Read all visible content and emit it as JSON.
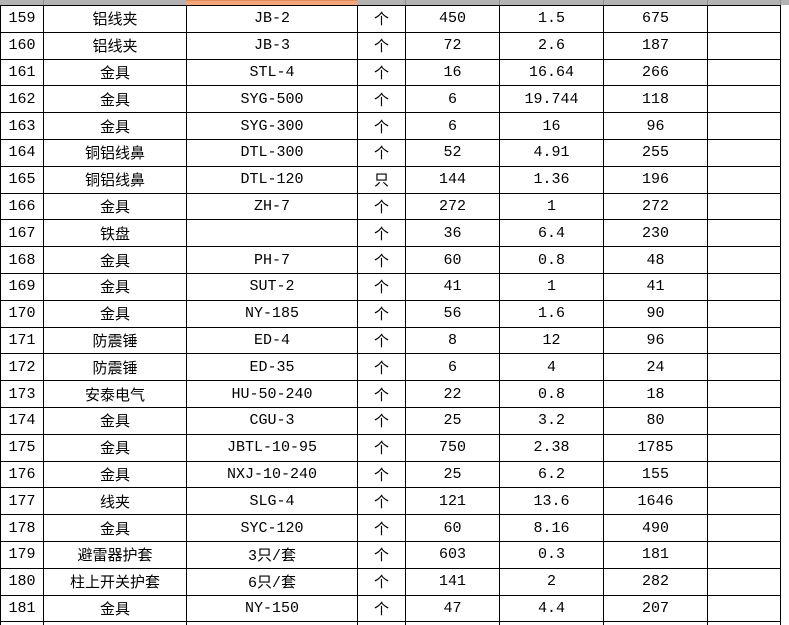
{
  "colors": {
    "background": "#ffffff",
    "grid_line": "#000000",
    "strip_gray": "#b3b3b3",
    "strip_orange": "#f3a678"
  },
  "table": {
    "columns": [
      {
        "key": "no",
        "name": "row-number-cell"
      },
      {
        "key": "name",
        "name": "item-name-cell"
      },
      {
        "key": "model",
        "name": "model-cell"
      },
      {
        "key": "unit",
        "name": "unit-cell"
      },
      {
        "key": "qty",
        "name": "quantity-cell"
      },
      {
        "key": "price",
        "name": "unit-price-cell"
      },
      {
        "key": "total",
        "name": "total-cell"
      },
      {
        "key": "blank",
        "name": "empty-cell"
      }
    ],
    "rows": [
      {
        "no": "159",
        "name": "铝线夹",
        "model": "JB-2",
        "unit": "个",
        "qty": "450",
        "price": "1.5",
        "total": "675",
        "blank": ""
      },
      {
        "no": "160",
        "name": "铝线夹",
        "model": "JB-3",
        "unit": "个",
        "qty": "72",
        "price": "2.6",
        "total": "187",
        "blank": ""
      },
      {
        "no": "161",
        "name": "金具",
        "model": "STL-4",
        "unit": "个",
        "qty": "16",
        "price": "16.64",
        "total": "266",
        "blank": ""
      },
      {
        "no": "162",
        "name": "金具",
        "model": "SYG-500",
        "unit": "个",
        "qty": "6",
        "price": "19.744",
        "total": "118",
        "blank": ""
      },
      {
        "no": "163",
        "name": "金具",
        "model": "SYG-300",
        "unit": "个",
        "qty": "6",
        "price": "16",
        "total": "96",
        "blank": ""
      },
      {
        "no": "164",
        "name": "铜铝线鼻",
        "model": "DTL-300",
        "unit": "个",
        "qty": "52",
        "price": "4.91",
        "total": "255",
        "blank": ""
      },
      {
        "no": "165",
        "name": "铜铝线鼻",
        "model": "DTL-120",
        "unit": "只",
        "qty": "144",
        "price": "1.36",
        "total": "196",
        "blank": ""
      },
      {
        "no": "166",
        "name": "金具",
        "model": "ZH-7",
        "unit": "个",
        "qty": "272",
        "price": "1",
        "total": "272",
        "blank": ""
      },
      {
        "no": "167",
        "name": "铁盘",
        "model": "",
        "unit": "个",
        "qty": "36",
        "price": "6.4",
        "total": "230",
        "blank": ""
      },
      {
        "no": "168",
        "name": "金具",
        "model": "PH-7",
        "unit": "个",
        "qty": "60",
        "price": "0.8",
        "total": "48",
        "blank": ""
      },
      {
        "no": "169",
        "name": "金具",
        "model": "SUT-2",
        "unit": "个",
        "qty": "41",
        "price": "1",
        "total": "41",
        "blank": ""
      },
      {
        "no": "170",
        "name": "金具",
        "model": "NY-185",
        "unit": "个",
        "qty": "56",
        "price": "1.6",
        "total": "90",
        "blank": ""
      },
      {
        "no": "171",
        "name": "防震锤",
        "model": "ED-4",
        "unit": "个",
        "qty": "8",
        "price": "12",
        "total": "96",
        "blank": ""
      },
      {
        "no": "172",
        "name": "防震锤",
        "model": "ED-35",
        "unit": "个",
        "qty": "6",
        "price": "4",
        "total": "24",
        "blank": ""
      },
      {
        "no": "173",
        "name": "安泰电气",
        "model": "HU-50-240",
        "unit": "个",
        "qty": "22",
        "price": "0.8",
        "total": "18",
        "blank": ""
      },
      {
        "no": "174",
        "name": "金具",
        "model": "CGU-3",
        "unit": "个",
        "qty": "25",
        "price": "3.2",
        "total": "80",
        "blank": ""
      },
      {
        "no": "175",
        "name": "金具",
        "model": "JBTL-10-95",
        "unit": "个",
        "qty": "750",
        "price": "2.38",
        "total": "1785",
        "blank": ""
      },
      {
        "no": "176",
        "name": "金具",
        "model": "NXJ-10-240",
        "unit": "个",
        "qty": "25",
        "price": "6.2",
        "total": "155",
        "blank": ""
      },
      {
        "no": "177",
        "name": "线夹",
        "model": "SLG-4",
        "unit": "个",
        "qty": "121",
        "price": "13.6",
        "total": "1646",
        "blank": ""
      },
      {
        "no": "178",
        "name": "金具",
        "model": "SYC-120",
        "unit": "个",
        "qty": "60",
        "price": "8.16",
        "total": "490",
        "blank": ""
      },
      {
        "no": "179",
        "name": "避雷器护套",
        "model": "3只/套",
        "unit": "个",
        "qty": "603",
        "price": "0.3",
        "total": "181",
        "blank": ""
      },
      {
        "no": "180",
        "name": "柱上开关护套",
        "model": "6只/套",
        "unit": "个",
        "qty": "141",
        "price": "2",
        "total": "282",
        "blank": ""
      },
      {
        "no": "181",
        "name": "金具",
        "model": "NY-150",
        "unit": "个",
        "qty": "47",
        "price": "4.4",
        "total": "207",
        "blank": ""
      }
    ]
  }
}
